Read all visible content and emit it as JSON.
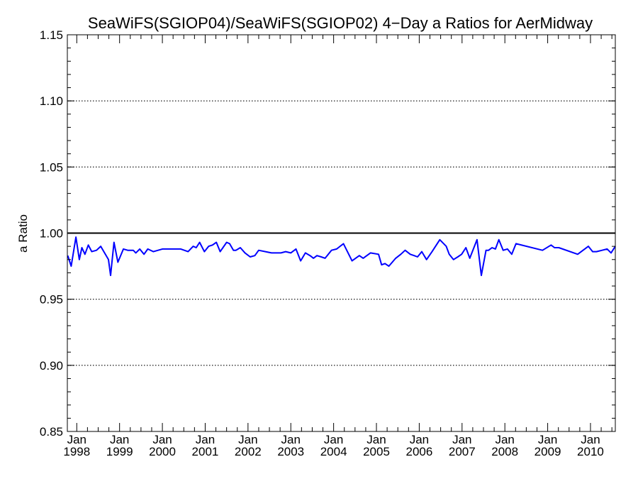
{
  "chart_data": {
    "type": "line",
    "title": "SeaWiFS(SGIOP04)/SeaWiFS(SGIOP02) 4−Day a Ratios for AerMidway",
    "xlabel": "",
    "ylabel": "a Ratio",
    "xlim": [
      1997.78,
      2010.58
    ],
    "ylim": [
      0.85,
      1.15
    ],
    "yticks": [
      0.85,
      0.9,
      0.95,
      1.0,
      1.05,
      1.1,
      1.15
    ],
    "ytick_labels": [
      "0.85",
      "0.90",
      "0.95",
      "1.00",
      "1.05",
      "1.10",
      "1.15"
    ],
    "xticks": [
      {
        "value": 1998,
        "month": "Jan",
        "year": "1998"
      },
      {
        "value": 1999,
        "month": "Jan",
        "year": "1999"
      },
      {
        "value": 2000,
        "month": "Jan",
        "year": "2000"
      },
      {
        "value": 2001,
        "month": "Jan",
        "year": "2001"
      },
      {
        "value": 2002,
        "month": "Jan",
        "year": "2002"
      },
      {
        "value": 2003,
        "month": "Jan",
        "year": "2003"
      },
      {
        "value": 2004,
        "month": "Jan",
        "year": "2004"
      },
      {
        "value": 2005,
        "month": "Jan",
        "year": "2005"
      },
      {
        "value": 2006,
        "month": "Jan",
        "year": "2006"
      },
      {
        "value": 2007,
        "month": "Jan",
        "year": "2007"
      },
      {
        "value": 2008,
        "month": "Jan",
        "year": "2008"
      },
      {
        "value": 2009,
        "month": "Jan",
        "year": "2009"
      },
      {
        "value": 2010,
        "month": "Jan",
        "year": "2010"
      }
    ],
    "grid": "horizontal-dotted",
    "reference_line": {
      "y": 1.0,
      "color": "#000000"
    },
    "series": [
      {
        "color": "#0000ff",
        "x": [
          1997.79,
          1997.87,
          1997.98,
          1998.06,
          1998.12,
          1998.19,
          1998.27,
          1998.35,
          1998.46,
          1998.56,
          1998.74,
          1998.79,
          1998.87,
          1998.96,
          1999.09,
          1999.19,
          1999.32,
          1999.38,
          1999.47,
          1999.57,
          1999.66,
          1999.79,
          2000.0,
          2000.2,
          2000.43,
          2000.6,
          2000.72,
          2000.79,
          2000.87,
          2000.98,
          2001.08,
          2001.17,
          2001.26,
          2001.35,
          2001.5,
          2001.57,
          2001.66,
          2001.72,
          2001.82,
          2001.93,
          2002.05,
          2002.16,
          2002.25,
          2002.55,
          2002.65,
          2002.77,
          2002.88,
          2003.0,
          2003.12,
          2003.23,
          2003.34,
          2003.45,
          2003.53,
          2003.61,
          2003.71,
          2003.8,
          2003.95,
          2004.07,
          2004.15,
          2004.23,
          2004.43,
          2004.6,
          2004.69,
          2004.86,
          2005.05,
          2005.12,
          2005.2,
          2005.29,
          2005.45,
          2005.57,
          2005.67,
          2005.79,
          2005.88,
          2005.96,
          2006.06,
          2006.17,
          2006.3,
          2006.48,
          2006.63,
          2006.7,
          2006.8,
          2006.9,
          2006.99,
          2007.09,
          2007.18,
          2007.35,
          2007.45,
          2007.56,
          2007.62,
          2007.7,
          2007.78,
          2007.86,
          2007.96,
          2008.06,
          2008.16,
          2008.26,
          2008.88,
          2009.08,
          2009.16,
          2009.26,
          2009.7,
          2009.95,
          2010.05,
          2010.14,
          2010.27,
          2010.39,
          2010.48,
          2010.58
        ],
        "y": [
          0.983,
          0.975,
          0.997,
          0.98,
          0.989,
          0.984,
          0.991,
          0.986,
          0.987,
          0.99,
          0.98,
          0.968,
          0.993,
          0.978,
          0.988,
          0.987,
          0.987,
          0.985,
          0.988,
          0.984,
          0.988,
          0.986,
          0.988,
          0.988,
          0.988,
          0.986,
          0.99,
          0.989,
          0.993,
          0.986,
          0.99,
          0.991,
          0.993,
          0.986,
          0.993,
          0.992,
          0.987,
          0.987,
          0.989,
          0.985,
          0.982,
          0.983,
          0.987,
          0.985,
          0.985,
          0.985,
          0.986,
          0.985,
          0.988,
          0.979,
          0.985,
          0.983,
          0.981,
          0.983,
          0.982,
          0.981,
          0.987,
          0.988,
          0.99,
          0.992,
          0.979,
          0.983,
          0.981,
          0.985,
          0.984,
          0.976,
          0.977,
          0.975,
          0.981,
          0.984,
          0.987,
          0.984,
          0.983,
          0.982,
          0.986,
          0.98,
          0.986,
          0.995,
          0.99,
          0.984,
          0.98,
          0.982,
          0.984,
          0.989,
          0.981,
          0.995,
          0.968,
          0.987,
          0.987,
          0.989,
          0.988,
          0.995,
          0.987,
          0.988,
          0.984,
          0.992,
          0.987,
          0.991,
          0.989,
          0.989,
          0.984,
          0.99,
          0.986,
          0.986,
          0.987,
          0.988,
          0.985,
          0.99
        ]
      }
    ]
  }
}
